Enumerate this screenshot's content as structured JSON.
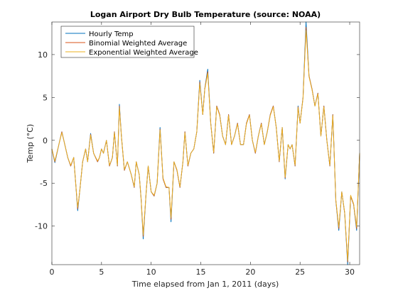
{
  "chart_data": {
    "type": "line",
    "title": "Logan Airport Dry Bulb Temperature (source: NOAA)",
    "xlabel": "Time elapsed from Jan 1, 2011 (days)",
    "ylabel": "Temp (°C)",
    "xlim": [
      0,
      31
    ],
    "ylim": [
      -14.5,
      13.8
    ],
    "xticks": [
      0,
      5,
      10,
      15,
      20,
      25,
      30
    ],
    "xtick_labels": [
      "0",
      "5",
      "10",
      "15",
      "20",
      "25",
      "30"
    ],
    "yticks": [
      -10,
      -5,
      0,
      5,
      10
    ],
    "ytick_labels": [
      "-10",
      "-5",
      "0",
      "5",
      "10"
    ],
    "grid": false,
    "legend_position": "top-left",
    "colors": {
      "hourly": "#0072BD",
      "binomial": "#D95319",
      "exponential": "#EDB120",
      "axes": "#262626"
    },
    "x": [
      0,
      0.3,
      0.7,
      1.0,
      1.2,
      1.6,
      1.9,
      2.2,
      2.4,
      2.6,
      2.8,
      3.1,
      3.4,
      3.6,
      3.9,
      4.2,
      4.6,
      4.8,
      5.0,
      5.2,
      5.5,
      5.8,
      6.1,
      6.3,
      6.6,
      6.8,
      7.0,
      7.3,
      7.6,
      8.0,
      8.3,
      8.5,
      8.8,
      9.0,
      9.2,
      9.5,
      9.7,
      10.0,
      10.3,
      10.6,
      10.9,
      11.2,
      11.5,
      11.8,
      12.0,
      12.3,
      12.6,
      12.9,
      13.2,
      13.4,
      13.7,
      14.0,
      14.3,
      14.6,
      14.9,
      15.2,
      15.4,
      15.7,
      16.0,
      16.3,
      16.6,
      16.9,
      17.2,
      17.5,
      17.8,
      18.1,
      18.4,
      18.7,
      19.0,
      19.3,
      19.6,
      19.9,
      20.2,
      20.5,
      20.8,
      21.1,
      21.4,
      21.7,
      22.0,
      22.3,
      22.6,
      22.9,
      23.2,
      23.5,
      23.8,
      24.0,
      24.2,
      24.5,
      24.8,
      25.0,
      25.3,
      25.6,
      25.9,
      26.2,
      26.5,
      26.8,
      27.1,
      27.4,
      27.7,
      28.0,
      28.3,
      28.6,
      28.9,
      29.2,
      29.5,
      29.8,
      30.1,
      30.4,
      30.7,
      31.0
    ],
    "series": [
      {
        "name": "Hourly Temp",
        "values": [
          -1.0,
          -2.6,
          -0.5,
          1.0,
          0.0,
          -2.0,
          -3.0,
          -2.0,
          -5.0,
          -8.2,
          -6.0,
          -2.5,
          -1.0,
          -2.5,
          0.8,
          -1.5,
          -2.5,
          -2.0,
          -1.0,
          -1.5,
          0.0,
          -3.0,
          -2.0,
          1.0,
          -3.0,
          4.2,
          0.5,
          -3.5,
          -2.5,
          -4.0,
          -5.5,
          -2.5,
          -4.0,
          -7.0,
          -11.5,
          -6.0,
          -3.0,
          -6.0,
          -6.5,
          -5.0,
          1.5,
          -4.5,
          -5.5,
          -5.5,
          -9.5,
          -2.5,
          -3.5,
          -5.5,
          -2.5,
          1.0,
          -3.0,
          -1.5,
          -1.0,
          1.0,
          7.0,
          3.0,
          6.0,
          8.3,
          2.0,
          -1.5,
          4.0,
          3.0,
          0.5,
          -0.5,
          3.0,
          -0.5,
          0.5,
          2.0,
          -0.5,
          -0.5,
          2.0,
          3.0,
          0.0,
          -1.5,
          0.5,
          2.0,
          -0.5,
          1.0,
          3.0,
          4.0,
          1.5,
          -2.5,
          1.5,
          -4.5,
          -0.5,
          -1.0,
          -0.5,
          -3.0,
          4.0,
          2.0,
          5.0,
          13.8,
          7.5,
          6.0,
          4.0,
          5.5,
          0.5,
          4.0,
          0.0,
          -3.0,
          3.0,
          -7.0,
          -10.5,
          -6.0,
          -8.5,
          -14.5,
          -6.5,
          -7.5,
          -10.5,
          -1.5
        ]
      },
      {
        "name": "Binomial Weighted Average",
        "values": [
          -1.0,
          -2.5,
          -0.5,
          1.0,
          0.0,
          -2.0,
          -3.0,
          -2.0,
          -5.0,
          -8.0,
          -6.0,
          -2.5,
          -1.0,
          -2.5,
          0.7,
          -1.5,
          -2.5,
          -2.0,
          -1.0,
          -1.5,
          0.0,
          -3.0,
          -2.0,
          1.0,
          -3.0,
          4.0,
          0.5,
          -3.5,
          -2.5,
          -4.0,
          -5.5,
          -2.5,
          -4.0,
          -7.0,
          -11.2,
          -6.0,
          -3.0,
          -6.0,
          -6.5,
          -5.0,
          1.3,
          -4.5,
          -5.5,
          -5.5,
          -9.2,
          -2.5,
          -3.5,
          -5.5,
          -2.5,
          1.0,
          -3.0,
          -1.5,
          -1.0,
          1.0,
          6.8,
          3.0,
          6.0,
          8.0,
          2.0,
          -1.5,
          4.0,
          3.0,
          0.5,
          -0.5,
          3.0,
          -0.5,
          0.5,
          2.0,
          -0.5,
          -0.5,
          2.0,
          3.0,
          0.0,
          -1.5,
          0.5,
          2.0,
          -0.5,
          1.0,
          3.0,
          4.0,
          1.5,
          -2.5,
          1.5,
          -4.4,
          -0.5,
          -1.0,
          -0.5,
          -3.0,
          3.9,
          2.0,
          5.0,
          13.2,
          7.5,
          6.0,
          4.0,
          5.5,
          0.5,
          4.0,
          0.0,
          -3.0,
          3.0,
          -7.0,
          -10.3,
          -6.0,
          -8.5,
          -14.2,
          -6.5,
          -7.5,
          -10.3,
          -1.5
        ]
      },
      {
        "name": "Exponential Weighted Average",
        "values": [
          -1.0,
          -2.4,
          -0.5,
          0.9,
          0.0,
          -2.0,
          -2.9,
          -2.0,
          -5.0,
          -7.8,
          -6.0,
          -2.5,
          -1.0,
          -2.5,
          0.6,
          -1.5,
          -2.4,
          -2.0,
          -1.0,
          -1.5,
          0.0,
          -2.9,
          -2.0,
          0.9,
          -2.9,
          3.8,
          0.5,
          -3.4,
          -2.5,
          -4.0,
          -5.4,
          -2.5,
          -4.0,
          -6.9,
          -11.0,
          -6.0,
          -3.0,
          -6.0,
          -6.4,
          -5.0,
          1.2,
          -4.4,
          -5.4,
          -5.5,
          -9.0,
          -2.5,
          -3.4,
          -5.4,
          -2.5,
          0.9,
          -2.9,
          -1.5,
          -1.0,
          1.0,
          6.6,
          3.0,
          5.9,
          7.8,
          2.0,
          -1.4,
          3.9,
          2.9,
          0.5,
          -0.5,
          2.9,
          -0.5,
          0.5,
          1.9,
          -0.5,
          -0.5,
          1.9,
          2.9,
          0.0,
          -1.4,
          0.5,
          1.9,
          -0.5,
          1.0,
          2.9,
          3.9,
          1.5,
          -2.4,
          1.5,
          -4.3,
          -0.5,
          -1.0,
          -0.5,
          -2.9,
          3.8,
          2.0,
          4.9,
          12.8,
          7.4,
          5.9,
          4.0,
          5.4,
          0.5,
          3.9,
          0.0,
          -2.9,
          2.9,
          -6.9,
          -10.1,
          -6.0,
          -8.4,
          -14.0,
          -6.4,
          -7.4,
          -10.1,
          -1.5
        ]
      }
    ]
  }
}
